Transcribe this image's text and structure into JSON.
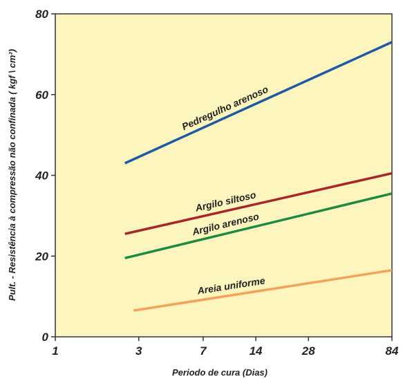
{
  "chart_data": {
    "type": "line",
    "title": "",
    "xlabel": "Periodo de cura  (Dias)",
    "ylabel": "Pult. - Resistência à compressão não confinada ( kgf \\ cm²)",
    "x_scale": "log",
    "xlim": [
      1,
      84
    ],
    "x_ticks": [
      1,
      3,
      7,
      14,
      28,
      84
    ],
    "ylim": [
      0,
      80
    ],
    "y_ticks": [
      0,
      20,
      40,
      60,
      80
    ],
    "grid": false,
    "legend": "none (labels placed on lines)",
    "background_color": "#fcf5bd",
    "series": [
      {
        "name": "Pedregulho arenoso",
        "color": "#1c5aa6",
        "x": [
          2.5,
          84
        ],
        "y": [
          43,
          73
        ]
      },
      {
        "name": "Argilo siltoso",
        "color": "#a8252b",
        "x": [
          2.5,
          84
        ],
        "y": [
          25.5,
          40.5
        ]
      },
      {
        "name": "Argilo arenoso",
        "color": "#1a8a45",
        "x": [
          2.5,
          84
        ],
        "y": [
          19.5,
          35.5
        ]
      },
      {
        "name": "Areia uniforme",
        "color": "#f4a15a",
        "x": [
          2.8,
          84
        ],
        "y": [
          6.5,
          16.5
        ]
      }
    ]
  }
}
